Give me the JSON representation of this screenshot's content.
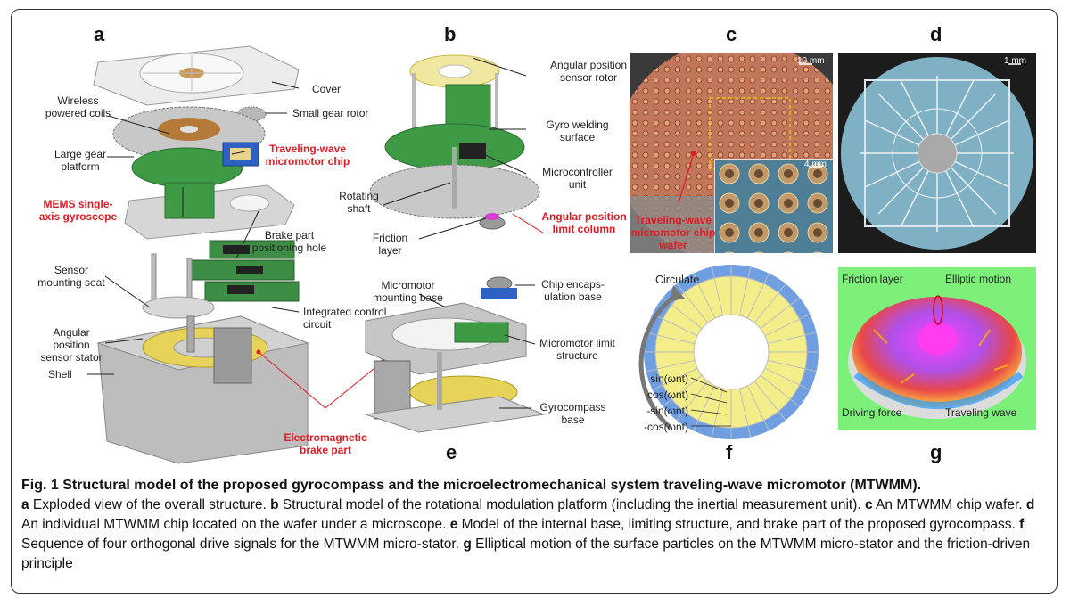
{
  "panels": {
    "a": "a",
    "b": "b",
    "c": "c",
    "d": "d",
    "e": "e",
    "f": "f",
    "g": "g"
  },
  "panel_a": {
    "cover": "Cover",
    "wireless_coils": "Wireless powered coils",
    "small_gear": "Small gear rotor",
    "large_gear": "Large gear platform",
    "tw_chip": "Traveling-wave micromotor chip",
    "mems": "MEMS single-axis gyroscope",
    "brake_hole": "Brake part positioning hole",
    "sensor_seat": "Sensor mounting seat",
    "integrated": "Integrated control circuit",
    "angular_stator": "Angular position sensor stator",
    "shell": "Shell",
    "brake": "Electromagnetic brake part"
  },
  "panel_b": {
    "rotor": "Angular position sensor rotor",
    "gyro_weld": "Gyro welding surface",
    "mcu": "Microcontroller unit",
    "shaft": "Rotating shaft",
    "limit": "Angular position limit column",
    "friction": "Friction layer"
  },
  "panel_c": {
    "scale1": "10 mm",
    "scale2": "4 mm",
    "wafer": "Traveling-wave micromotor chip wafer"
  },
  "panel_d": {
    "scale": "1 mm"
  },
  "panel_e": {
    "mount_base": "Micromotor mounting base",
    "chip_encap": "Chip encaps-ulation base",
    "limit_struct": "Micromotor limit structure",
    "gyro_base": "Gyrocompass base"
  },
  "panel_f": {
    "circulate": "Circulate",
    "s1": "sin(ωnt)",
    "s2": "cos(ωnt)",
    "s3": "-sin(ωnt)",
    "s4": "-cos(ωnt)"
  },
  "panel_g": {
    "friction": "Friction layer",
    "elliptic": "Elliptic motion",
    "driving": "Driving force",
    "traveling": "Traveling wave"
  },
  "caption": {
    "title": "Fig. 1 Structural model of the proposed gyrocompass and the microelectromechanical system traveling-wave micromotor (MTWMM).",
    "a": "a",
    "a_text": " Exploded view of the overall structure. ",
    "b": "b",
    "b_text": " Structural model of the rotational modulation platform (including the inertial measurement unit). ",
    "c": "c",
    "c_text": " An MTWMM chip wafer. ",
    "d": "d",
    "d_text": " An individual MTWMM chip located on the wafer under a microscope. ",
    "e": "e",
    "e_text": " Model of the internal base, limiting structure, and brake part of the proposed gyrocompass. ",
    "f": "f",
    "f_text": " Sequence of four orthogonal drive signals for the MTWMM micro-stator. ",
    "g": "g",
    "g_text": " Elliptical motion of the surface particles on the MTWMM micro-stator and the friction-driven principle"
  }
}
